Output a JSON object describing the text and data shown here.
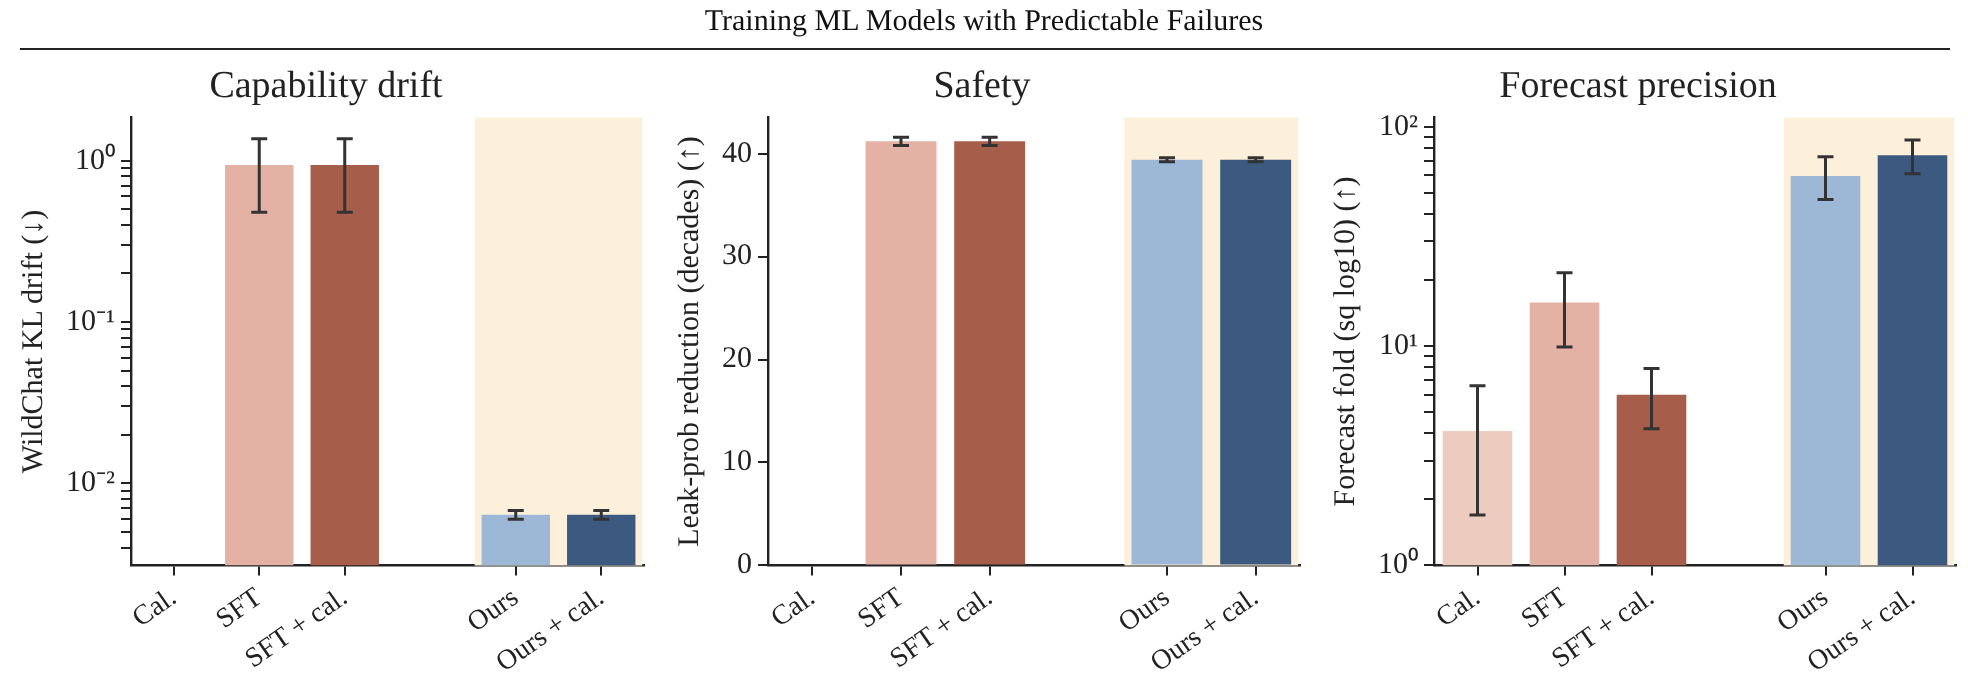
{
  "chart_data": [
    {
      "type": "other",
      "title": "Training ML Models with Predictable Failures"
    },
    {
      "type": "bar",
      "title": "Capability drift",
      "ylabel": "WildChat KL drift (↓)",
      "categories": [
        "Cal.",
        "SFT",
        "SFT + cal.",
        null,
        "Ours",
        "Ours + cal."
      ],
      "values": [
        null,
        0.94,
        0.94,
        null,
        0.0064,
        0.0064
      ],
      "colors": [
        "#ecccbf",
        "#e3b2a5",
        "#a65d4a",
        "#ffffff",
        "#9db7d6",
        "#3c5a80"
      ],
      "errors": [
        null,
        [
          0.48,
          1.37
        ],
        [
          0.48,
          1.37
        ],
        null,
        [
          0.006,
          0.0068
        ],
        [
          0.006,
          0.0068
        ]
      ],
      "log": "y",
      "ylim": [
        0.0031,
        1.85
      ],
      "yticks": [
        {
          "value": 0.004,
          "label": null
        },
        {
          "value": 0.005,
          "label": null
        },
        {
          "value": 0.006,
          "label": null
        },
        {
          "value": 0.007,
          "label": null
        },
        {
          "value": 0.008,
          "label": null
        },
        {
          "value": 0.009,
          "label": null
        },
        {
          "value": 0.01,
          "label": "10⁻²"
        },
        {
          "value": 0.02,
          "label": null
        },
        {
          "value": 0.03,
          "label": null
        },
        {
          "value": 0.04,
          "label": null
        },
        {
          "value": 0.05,
          "label": null
        },
        {
          "value": 0.06,
          "label": null
        },
        {
          "value": 0.07,
          "label": null
        },
        {
          "value": 0.08,
          "label": null
        },
        {
          "value": 0.09,
          "label": null
        },
        {
          "value": 0.1,
          "label": "10⁻¹"
        },
        {
          "value": 0.2,
          "label": null
        },
        {
          "value": 0.3,
          "label": null
        },
        {
          "value": 0.4,
          "label": null
        },
        {
          "value": 0.5,
          "label": null
        },
        {
          "value": 0.6,
          "label": null
        },
        {
          "value": 0.7,
          "label": null
        },
        {
          "value": 0.8,
          "label": null
        },
        {
          "value": 0.9,
          "label": null
        },
        {
          "value": 1,
          "label": "10⁰"
        }
      ],
      "bands": [
        {
          "axis": "x",
          "from": "Ours",
          "to": "Ours + cal.",
          "color": "#fdf0da"
        }
      ]
    },
    {
      "type": "bar",
      "title": "Safety",
      "ylabel": "Leak-prob reduction (decades) (↑)",
      "categories": [
        "Cal.",
        "SFT",
        "SFT + cal.",
        null,
        "Ours",
        "Ours + cal."
      ],
      "values": [
        null,
        41.2,
        41.2,
        null,
        39.4,
        39.4
      ],
      "colors": [
        "#ecccbf",
        "#e3b2a5",
        "#a65d4a",
        "#ffffff",
        "#9db7d6",
        "#3c5a80"
      ],
      "errors": [
        null,
        [
          40.8,
          41.6
        ],
        [
          40.8,
          41.6
        ],
        null,
        [
          39.2,
          39.6
        ],
        [
          39.2,
          39.6
        ]
      ],
      "ylim": [
        0,
        43.5
      ],
      "yticks": [
        0,
        10,
        20,
        30,
        40
      ],
      "bands": [
        {
          "axis": "x",
          "from": "Ours",
          "to": "Ours + cal.",
          "color": "#fdf0da"
        }
      ]
    },
    {
      "type": "bar",
      "title": "Forecast precision",
      "ylabel": "Forecast fold (sq log10) (↑)",
      "categories": [
        "Cal.",
        "SFT",
        "SFT + cal.",
        null,
        "Ours",
        "Ours + cal."
      ],
      "values": [
        4.1,
        15.8,
        6.0,
        null,
        59.6,
        74
      ],
      "colors": [
        "#ecccbf",
        "#e3b2a5",
        "#a65d4a",
        "#ffffff",
        "#9db7d6",
        "#3c5a80"
      ],
      "errors": [
        [
          1.7,
          6.6
        ],
        [
          9.9,
          21.6
        ],
        [
          4.2,
          7.9
        ],
        null,
        [
          46.6,
          73
        ],
        [
          61,
          87
        ]
      ],
      "log": "y",
      "ylim": [
        1,
        110
      ],
      "yticks": [
        {
          "value": 1,
          "label": "10⁰"
        },
        {
          "value": 2,
          "label": null
        },
        {
          "value": 3,
          "label": null
        },
        {
          "value": 4,
          "label": null
        },
        {
          "value": 5,
          "label": null
        },
        {
          "value": 6,
          "label": null
        },
        {
          "value": 7,
          "label": null
        },
        {
          "value": 8,
          "label": null
        },
        {
          "value": 9,
          "label": null
        },
        {
          "value": 10,
          "label": "10¹"
        },
        {
          "value": 20,
          "label": null
        },
        {
          "value": 30,
          "label": null
        },
        {
          "value": 40,
          "label": null
        },
        {
          "value": 50,
          "label": null
        },
        {
          "value": 60,
          "label": null
        },
        {
          "value": 70,
          "label": null
        },
        {
          "value": 80,
          "label": null
        },
        {
          "value": 90,
          "label": null
        },
        {
          "value": 100,
          "label": "10²"
        }
      ],
      "bands": [
        {
          "axis": "x",
          "from": "Ours",
          "to": "Ours + cal.",
          "color": "#fdf0da"
        }
      ]
    }
  ]
}
